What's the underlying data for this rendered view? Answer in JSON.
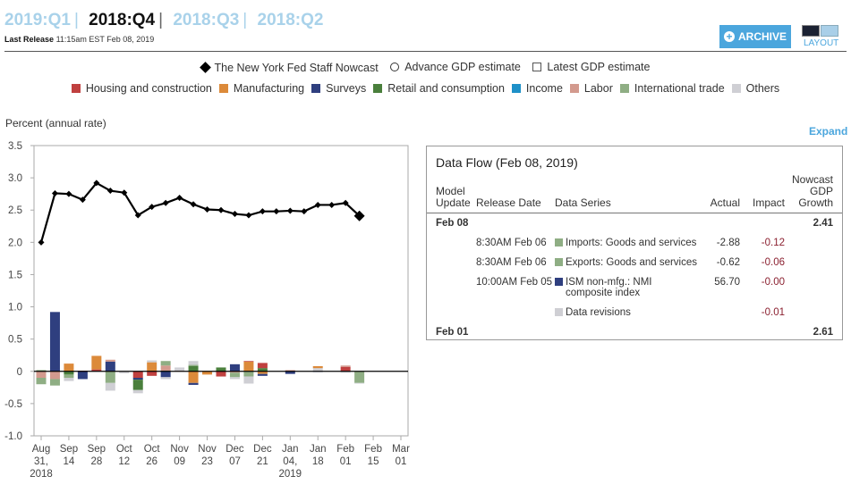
{
  "header": {
    "quarters": [
      {
        "label": "2019:Q1",
        "active": false
      },
      {
        "label": "2018:Q4",
        "active": true
      },
      {
        "label": "2018:Q3",
        "active": false
      },
      {
        "label": "2018:Q2",
        "active": false
      }
    ],
    "separator": "|",
    "last_release_label": "Last Release",
    "last_release_value": "11:15am EST Feb 08, 2019",
    "archive_label": "ARCHIVE",
    "layout_label": "LAYOUT"
  },
  "legend": {
    "markers": [
      {
        "label": "The New York Fed Staff Nowcast",
        "icon": "diamond-icon"
      },
      {
        "label": "Advance GDP estimate",
        "icon": "circle-icon"
      },
      {
        "label": "Latest GDP estimate",
        "icon": "square-icon"
      }
    ],
    "categories": [
      {
        "label": "Housing and construction",
        "color": "#c0403f"
      },
      {
        "label": "Manufacturing",
        "color": "#dc8a3a"
      },
      {
        "label": "Surveys",
        "color": "#2f3f7f"
      },
      {
        "label": "Retail and consumption",
        "color": "#4a7f3c"
      },
      {
        "label": "Income",
        "color": "#1e90c8"
      },
      {
        "label": "Labor",
        "color": "#d39a8e"
      },
      {
        "label": "International trade",
        "color": "#8fae84"
      },
      {
        "label": "Others",
        "color": "#cfcfd4"
      }
    ]
  },
  "expand_label": "Expand",
  "chart_data": {
    "type": "line",
    "title": "",
    "ylabel": "Percent (annual rate)",
    "xlabel": "",
    "ylim": [
      -1.0,
      3.5
    ],
    "yticks": [
      "3.5",
      "3.0",
      "2.5",
      "2.0",
      "1.5",
      "1.0",
      "0.5",
      "0",
      "-0.5",
      "-1.0"
    ],
    "ytick_values": [
      3.5,
      3.0,
      2.5,
      2.0,
      1.5,
      1.0,
      0.5,
      0,
      -0.5,
      -1.0
    ],
    "xticks": [
      [
        "Aug",
        "31,",
        "2018"
      ],
      [
        "Sep",
        "14"
      ],
      [
        "Sep",
        "28"
      ],
      [
        "Oct",
        "12"
      ],
      [
        "Oct",
        "26"
      ],
      [
        "Nov",
        "09"
      ],
      [
        "Nov",
        "23"
      ],
      [
        "Dec",
        "07"
      ],
      [
        "Dec",
        "21"
      ],
      [
        "Jan",
        "04,",
        "2019"
      ],
      [
        "Jan",
        "18"
      ],
      [
        "Feb",
        "01"
      ],
      [
        "Feb",
        "15"
      ],
      [
        "Mar",
        "01"
      ]
    ],
    "x_weeks_range": [
      0,
      26
    ],
    "series": [
      {
        "name": "The New York Fed Staff Nowcast",
        "x_weeks": [
          0,
          1,
          2,
          3,
          4,
          5,
          6,
          7,
          8,
          9,
          10,
          11,
          12,
          13,
          14,
          15,
          16,
          17,
          18,
          19,
          20,
          21,
          22,
          23
        ],
        "values": [
          2.0,
          2.76,
          2.75,
          2.66,
          2.92,
          2.8,
          2.77,
          2.42,
          2.55,
          2.61,
          2.69,
          2.59,
          2.51,
          2.5,
          2.44,
          2.42,
          2.48,
          2.48,
          2.49,
          2.48,
          2.58,
          2.58,
          2.61,
          2.41
        ]
      }
    ],
    "contributions": [
      {
        "week": 0,
        "parts": [
          [
            "International trade",
            0.02
          ],
          [
            "Labor",
            -0.1
          ],
          [
            "International trade",
            -0.1
          ]
        ]
      },
      {
        "week": 1,
        "parts": [
          [
            "Surveys",
            0.92
          ],
          [
            "Labor",
            -0.12
          ],
          [
            "International trade",
            -0.1
          ]
        ]
      },
      {
        "week": 2,
        "parts": [
          [
            "Manufacturing",
            0.12
          ],
          [
            "Retail and consumption",
            -0.05
          ],
          [
            "International trade",
            -0.05
          ],
          [
            "Others",
            -0.05
          ]
        ]
      },
      {
        "week": 3,
        "parts": [
          [
            "Housing and construction",
            0.01
          ],
          [
            "Surveys",
            -0.12
          ]
        ]
      },
      {
        "week": 4,
        "parts": [
          [
            "Housing and construction",
            0.03
          ],
          [
            "Manufacturing",
            0.21
          ]
        ]
      },
      {
        "week": 5,
        "parts": [
          [
            "Surveys",
            0.15
          ],
          [
            "Labor",
            0.03
          ],
          [
            "International trade",
            -0.18
          ],
          [
            "Others",
            -0.12
          ]
        ]
      },
      {
        "week": 6,
        "parts": [
          [
            "Others",
            -0.03
          ]
        ]
      },
      {
        "week": 7,
        "parts": [
          [
            "Housing and construction",
            -0.1
          ],
          [
            "Surveys",
            -0.03
          ],
          [
            "Retail and consumption",
            -0.16
          ],
          [
            "Others",
            -0.05
          ]
        ]
      },
      {
        "week": 8,
        "parts": [
          [
            "Manufacturing",
            0.14
          ],
          [
            "Others",
            0.03
          ],
          [
            "Housing and construction",
            -0.07
          ]
        ]
      },
      {
        "week": 9,
        "parts": [
          [
            "Retail and consumption",
            0.01
          ],
          [
            "Labor",
            0.08
          ],
          [
            "International trade",
            0.07
          ],
          [
            "Surveys",
            -0.09
          ],
          [
            "Others",
            -0.03
          ]
        ]
      },
      {
        "week": 10,
        "parts": [
          [
            "Labor",
            0.01
          ],
          [
            "Others",
            0.05
          ]
        ]
      },
      {
        "week": 11,
        "parts": [
          [
            "Retail and consumption",
            0.08
          ],
          [
            "International trade",
            0.02
          ],
          [
            "Others",
            0.06
          ],
          [
            "Manufacturing",
            -0.18
          ],
          [
            "Surveys",
            -0.03
          ]
        ]
      },
      {
        "week": 12,
        "parts": [
          [
            "Manufacturing",
            -0.05
          ]
        ]
      },
      {
        "week": 13,
        "parts": [
          [
            "Retail and consumption",
            0.06
          ],
          [
            "Housing and construction",
            -0.08
          ]
        ]
      },
      {
        "week": 14,
        "parts": [
          [
            "Surveys",
            0.11
          ],
          [
            "Labor",
            -0.02
          ],
          [
            "International trade",
            -0.07
          ],
          [
            "Others",
            -0.03
          ]
        ]
      },
      {
        "week": 15,
        "parts": [
          [
            "Manufacturing",
            0.15
          ],
          [
            "Housing and construction",
            0.01
          ],
          [
            "International trade",
            -0.08
          ],
          [
            "Others",
            -0.11
          ]
        ]
      },
      {
        "week": 16,
        "parts": [
          [
            "Retail and consumption",
            0.05
          ],
          [
            "Housing and construction",
            0.08
          ],
          [
            "Manufacturing",
            -0.04
          ],
          [
            "Surveys",
            -0.03
          ]
        ]
      },
      {
        "week": 18,
        "parts": [
          [
            "Labor",
            0.02
          ],
          [
            "Surveys",
            -0.04
          ]
        ]
      },
      {
        "week": 20,
        "parts": [
          [
            "Others",
            0.05
          ],
          [
            "Manufacturing",
            0.03
          ],
          [
            "Surveys",
            -0.01
          ]
        ]
      },
      {
        "week": 22,
        "parts": [
          [
            "Housing and construction",
            0.07
          ],
          [
            "Labor",
            0.02
          ],
          [
            "Others",
            -0.02
          ]
        ]
      },
      {
        "week": 23,
        "parts": [
          [
            "International trade",
            -0.18
          ],
          [
            "Others",
            -0.01
          ]
        ]
      }
    ]
  },
  "data_flow": {
    "title": "Data Flow (Feb 08, 2019)",
    "columns": {
      "model_update": [
        "Model",
        "Update"
      ],
      "release_date": "Release Date",
      "data_series": "Data Series",
      "actual": "Actual",
      "impact": "Impact",
      "nowcast": [
        "Nowcast",
        "GDP",
        "Growth"
      ]
    },
    "updates": [
      {
        "model_update": "Feb 08",
        "nowcast": "2.41",
        "rows": [
          {
            "release_date": "8:30AM Feb 06",
            "series": "Imports: Goods and services",
            "color": "#8fae84",
            "actual": "-2.88",
            "impact": "-0.12"
          },
          {
            "release_date": "8:30AM Feb 06",
            "series": "Exports: Goods and services",
            "color": "#8fae84",
            "actual": "-0.62",
            "impact": "-0.06"
          },
          {
            "release_date": "10:00AM Feb 05",
            "series": "ISM non-mfg.: NMI composite index",
            "color": "#2f3f7f",
            "actual": "56.70",
            "impact": "-0.00"
          },
          {
            "release_date": "",
            "series": "Data revisions",
            "color": "#cfcfd4",
            "actual": "",
            "impact": "-0.01"
          }
        ]
      },
      {
        "model_update": "Feb 01",
        "nowcast": "2.61",
        "rows": []
      }
    ]
  }
}
